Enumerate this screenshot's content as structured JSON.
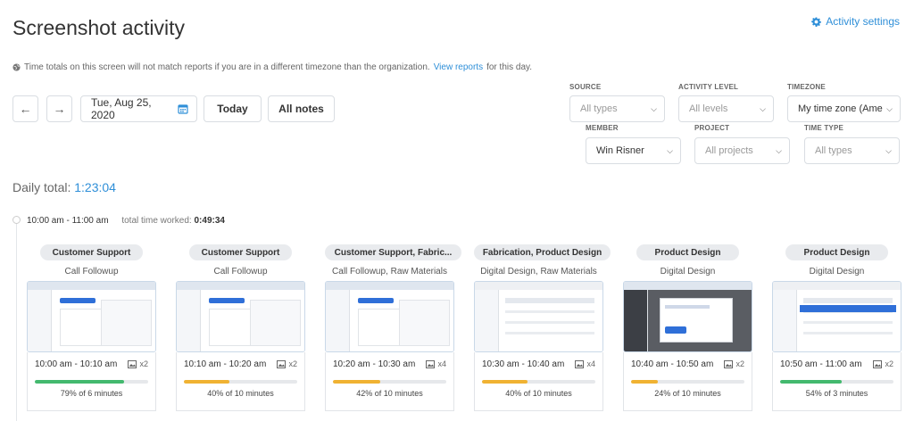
{
  "header": {
    "title": "Screenshot activity",
    "settings_label": "Activity settings",
    "notice_text": "Time totals on this screen will not match reports if you are in a different timezone than the organization.",
    "notice_link": "View reports",
    "notice_suffix": "for this day."
  },
  "toolbar": {
    "prev_icon": "←",
    "next_icon": "→",
    "date": "Tue, Aug 25, 2020",
    "today_label": "Today",
    "notes_label": "All notes"
  },
  "filters": {
    "source": {
      "label": "SOURCE",
      "value": "All types"
    },
    "activity_level": {
      "label": "ACTIVITY LEVEL",
      "value": "All levels"
    },
    "timezone": {
      "label": "TIMEZONE",
      "value": "My time zone (Ame"
    },
    "member": {
      "label": "MEMBER",
      "value": "Win Risner"
    },
    "project": {
      "label": "PROJECT",
      "value": "All projects"
    },
    "time_type": {
      "label": "TIME TYPE",
      "value": "All types"
    }
  },
  "daily": {
    "label": "Daily total:",
    "value": "1:23:04"
  },
  "hour_block": {
    "range": "10:00 am - 11:00 am",
    "worked_label": "total time worked:",
    "worked_value": "0:49:34"
  },
  "colors": {
    "accent": "#2f8fd8",
    "green": "#43b96e",
    "yellow": "#f0b232"
  },
  "cards": [
    {
      "project": "Customer Support",
      "task": "Call Followup",
      "time": "10:00 am - 10:10 am",
      "count": "x2",
      "activity": 0.79,
      "bar_color": "#43b96e",
      "percent_text": "79% of 6 minutes"
    },
    {
      "project": "Customer Support",
      "task": "Call Followup",
      "time": "10:10 am - 10:20 am",
      "count": "x2",
      "activity": 0.4,
      "bar_color": "#f0b232",
      "percent_text": "40% of 10 minutes"
    },
    {
      "project": "Customer Support, Fabric...",
      "task": "Call Followup, Raw Materials",
      "time": "10:20 am - 10:30 am",
      "count": "x4",
      "activity": 0.42,
      "bar_color": "#f0b232",
      "percent_text": "42% of 10 minutes"
    },
    {
      "project": "Fabrication, Product Design",
      "task": "Digital Design, Raw Materials",
      "time": "10:30 am - 10:40 am",
      "count": "x4",
      "activity": 0.4,
      "bar_color": "#f0b232",
      "percent_text": "40% of 10 minutes"
    },
    {
      "project": "Product Design",
      "task": "Digital Design",
      "time": "10:40 am - 10:50 am",
      "count": "x2",
      "activity": 0.24,
      "bar_color": "#f0b232",
      "percent_text": "24% of 10 minutes"
    },
    {
      "project": "Product Design",
      "task": "Digital Design",
      "time": "10:50 am - 11:00 am",
      "count": "x2",
      "activity": 0.54,
      "bar_color": "#43b96e",
      "percent_text": "54% of 3 minutes"
    }
  ]
}
